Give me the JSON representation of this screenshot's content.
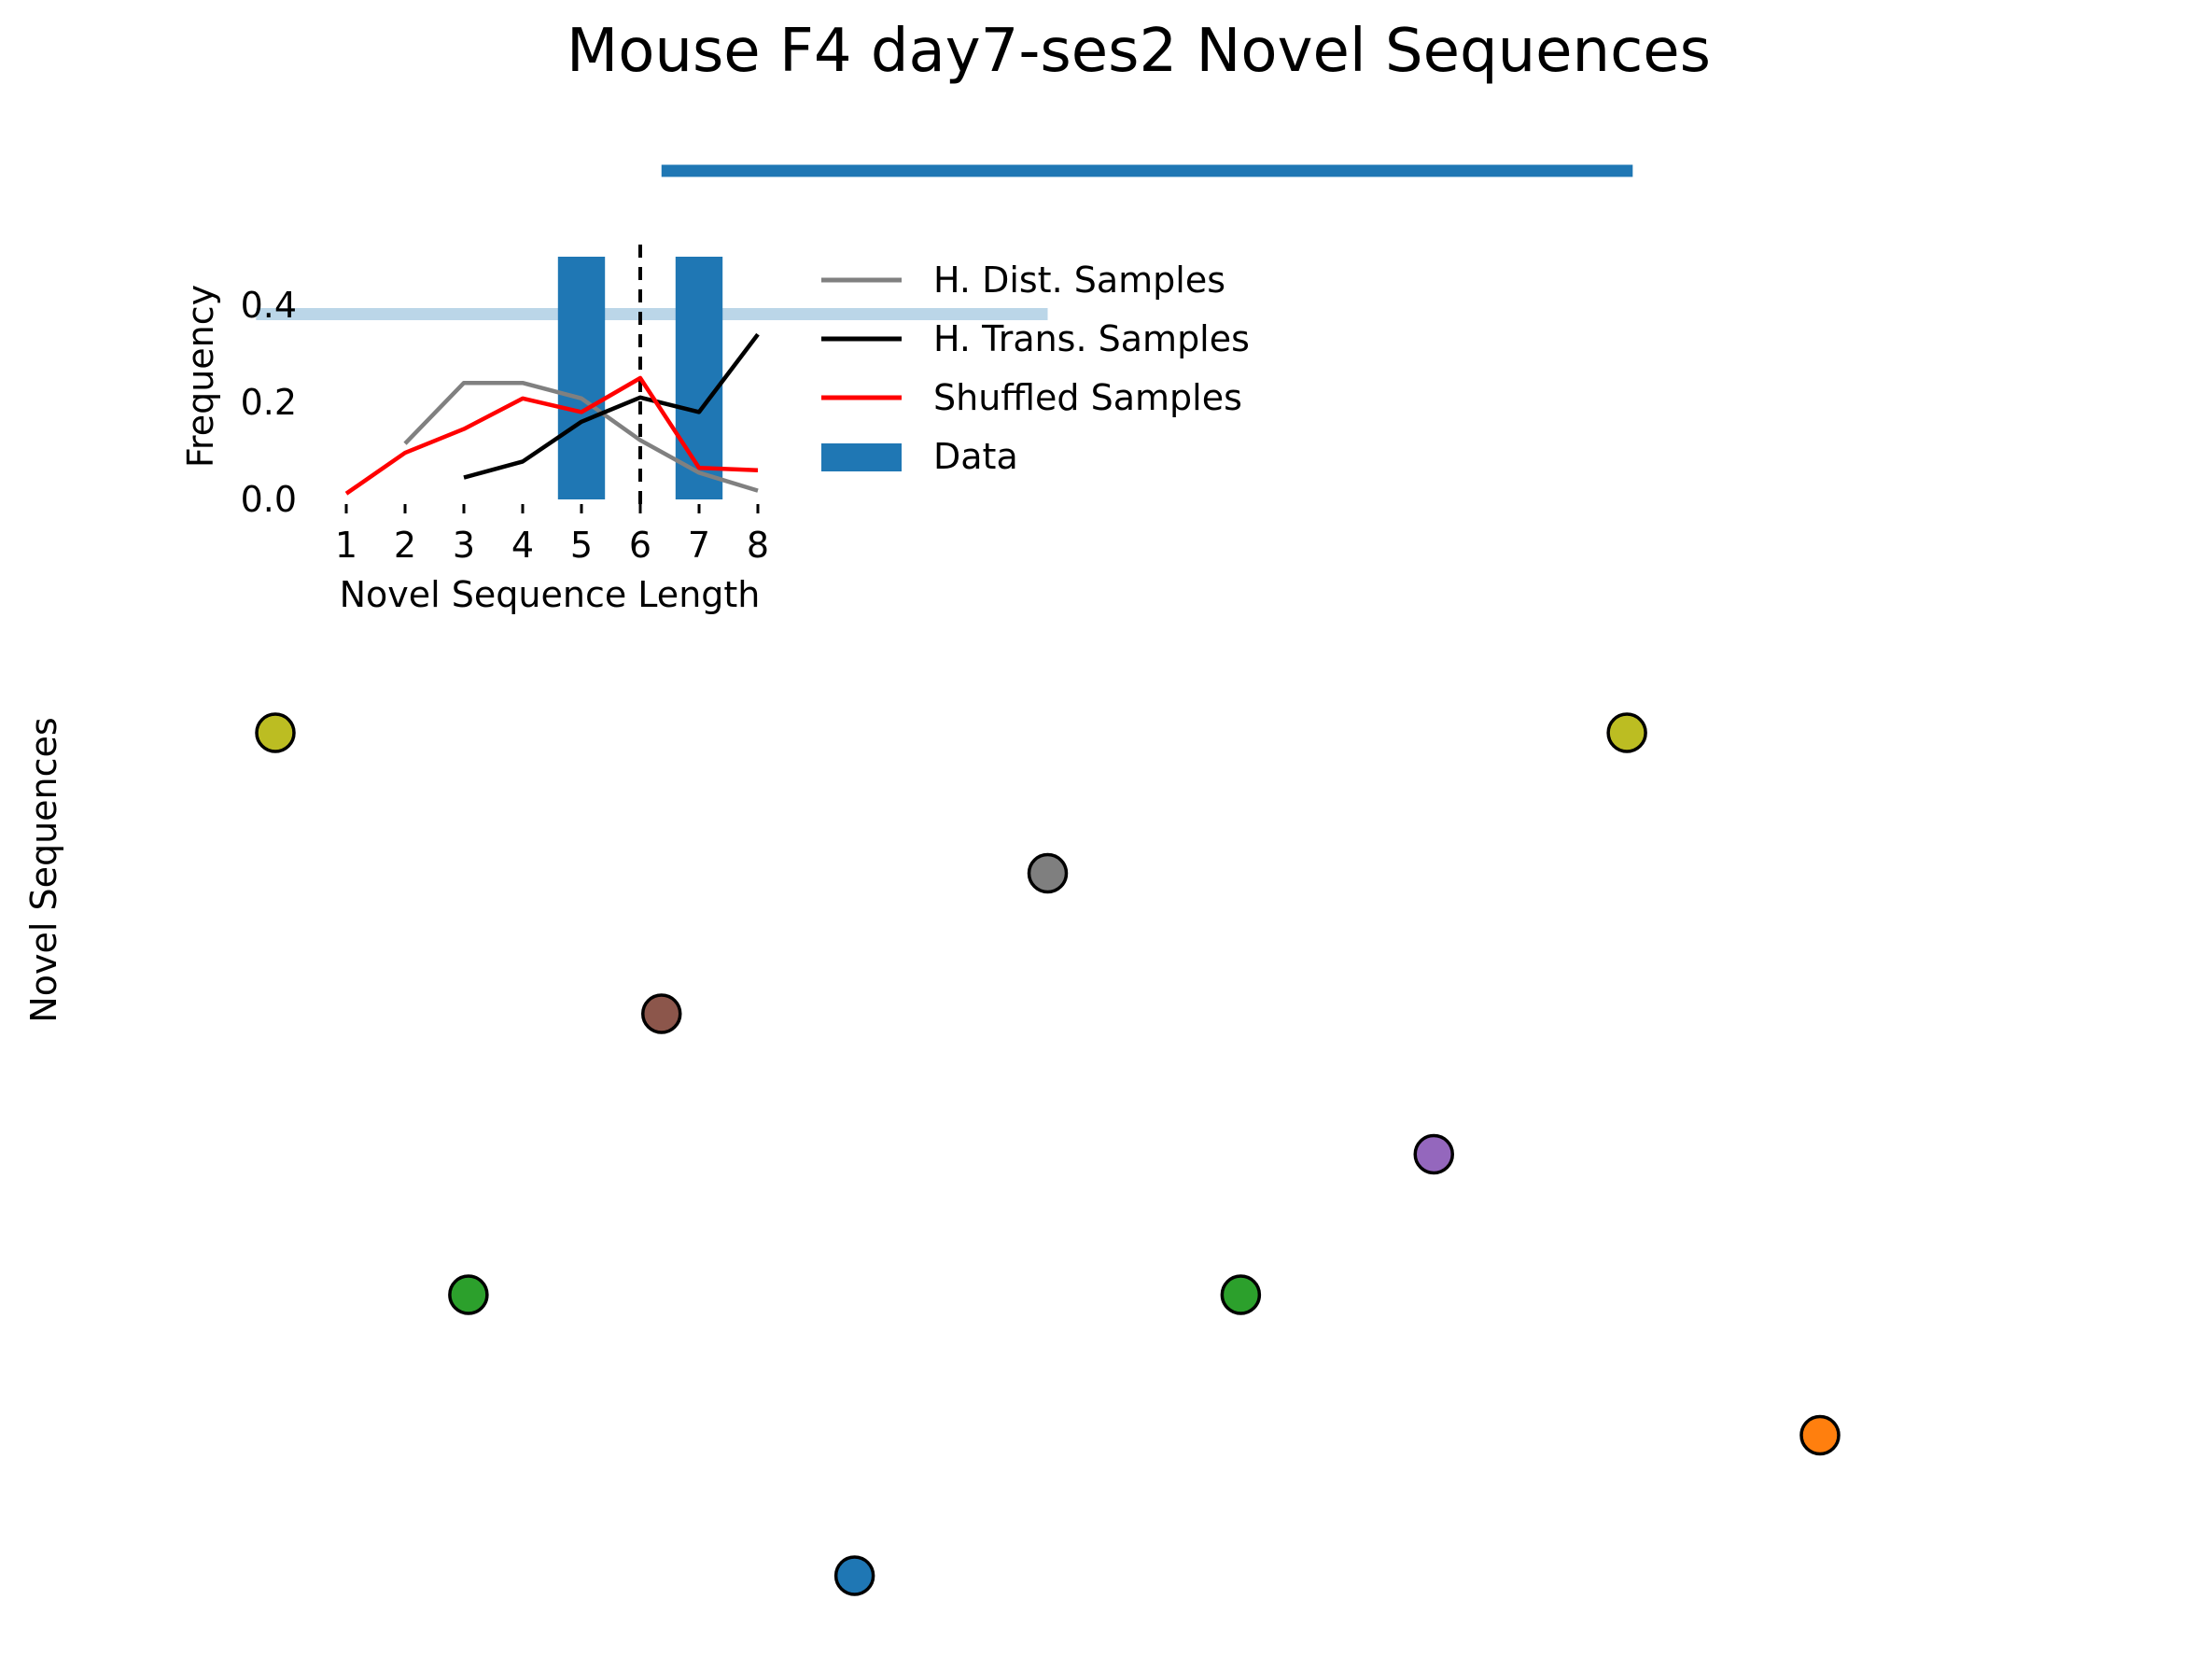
{
  "colors": {
    "gray": "#808080",
    "black": "#000000",
    "red": "#ff0000",
    "blue": "#1f77b4",
    "olive": "#bcbd22",
    "brown": "#8c564b",
    "green": "#2ca02c",
    "purple": "#9467bd",
    "orange": "#ff7f0e",
    "light_blue": "#1f77b4"
  },
  "chart_data": [
    {
      "type": "scatter",
      "title": "Mouse F4 day7-ses2 Novel Sequences",
      "ylabel": "Novel Sequences",
      "axes_visible": false,
      "grid": false,
      "xlim": [
        0,
        9
      ],
      "ylim": [
        0,
        6.5
      ],
      "points": [
        {
          "x": 0.0,
          "y": 6,
          "color": "#bcbd22"
        },
        {
          "x": 1.0,
          "y": 2,
          "color": "#2ca02c"
        },
        {
          "x": 2.0,
          "y": 4,
          "color": "#8c564b"
        },
        {
          "x": 3.0,
          "y": 0,
          "color": "#1f77b4"
        },
        {
          "x": 4.0,
          "y": 5,
          "color": "#7f7f7f"
        },
        {
          "x": 5.0,
          "y": 2,
          "color": "#2ca02c"
        },
        {
          "x": 6.0,
          "y": 3,
          "color": "#9467bd"
        },
        {
          "x": 7.0,
          "y": 6,
          "color": "#bcbd22"
        },
        {
          "x": 8.0,
          "y": 1,
          "color": "#ff7f0e"
        }
      ],
      "timeline_bars": [
        {
          "x_start": 2.0,
          "x_end": 7.03,
          "y": 10.0,
          "color": "#1f77b4",
          "alpha": 1.0
        },
        {
          "x_start": -0.1,
          "x_end": 4.0,
          "y": 8.98,
          "color": "#1f77b4",
          "alpha": 0.3
        }
      ]
    },
    {
      "type": "bar",
      "xlabel": "Novel Sequence Length",
      "ylabel": "Frequency",
      "categories": [
        "1",
        "2",
        "3",
        "4",
        "5",
        "6",
        "7",
        "8"
      ],
      "x_ticks": [
        1,
        2,
        3,
        4,
        5,
        6,
        7,
        8
      ],
      "y_ticks": [
        "0.0",
        "0.2",
        "0.4"
      ],
      "ylim": [
        0,
        0.5
      ],
      "vline_x": 6,
      "legend_position": "right",
      "series": [
        {
          "name": "H. Dist. Samples",
          "kind": "line",
          "color": "#808080",
          "x": [
            2,
            3,
            4,
            5,
            6,
            7,
            8
          ],
          "y": [
            0.115,
            0.24,
            0.24,
            0.208,
            0.122,
            0.055,
            0.018
          ]
        },
        {
          "name": "H. Trans. Samples",
          "kind": "line",
          "color": "#000000",
          "x": [
            3,
            4,
            5,
            6,
            7,
            8
          ],
          "y": [
            0.045,
            0.078,
            0.16,
            0.21,
            0.18,
            0.34
          ]
        },
        {
          "name": "Shuffled Samples",
          "kind": "line",
          "color": "#ff0000",
          "x": [
            1,
            2,
            3,
            4,
            5,
            6,
            7,
            8
          ],
          "y": [
            0.012,
            0.096,
            0.145,
            0.208,
            0.18,
            0.25,
            0.065,
            0.06
          ]
        },
        {
          "name": "Data",
          "kind": "bar",
          "color": "#1f77b4",
          "x": [
            5,
            7
          ],
          "y": [
            0.5,
            0.5
          ]
        }
      ]
    }
  ]
}
